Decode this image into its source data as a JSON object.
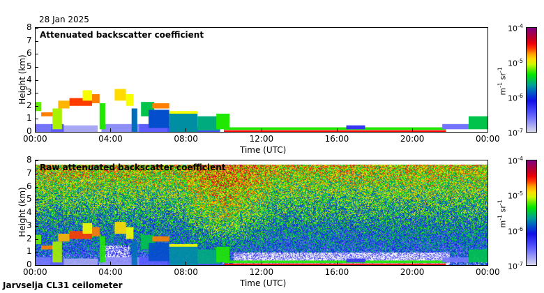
{
  "date": "28 Jan 2025",
  "footer": "Jarvselja CL31 ceilometer",
  "colors": {
    "low": "#d8d8ec",
    "high": "#800080"
  },
  "chart_data": [
    {
      "type": "heatmap",
      "title": "Attenuated backscatter coefficient",
      "xlabel": "Time (UTC)",
      "ylabel": "Height (km)",
      "xlim_hours": [
        0,
        24
      ],
      "ylim": [
        0,
        8
      ],
      "xticks": [
        "00:00",
        "04:00",
        "08:00",
        "12:00",
        "16:00",
        "20:00",
        "00:00"
      ],
      "yticks": [
        "0",
        "1",
        "2",
        "3",
        "4",
        "5",
        "6",
        "7",
        "8"
      ],
      "colorbar": {
        "label_base": "m",
        "label_exp1": "-1",
        "label_mid": " sr",
        "label_exp2": "-1",
        "ticks": [
          {
            "base": "10",
            "exp": "-4"
          },
          {
            "base": "10",
            "exp": "-5"
          },
          {
            "base": "10",
            "exp": "-6"
          },
          {
            "base": "10",
            "exp": "-7"
          }
        ],
        "range_log10": [
          -7,
          -4
        ]
      },
      "layers_hours_km_log10": [
        [
          0.0,
          0.8,
          0.0,
          0.6,
          -6.6
        ],
        [
          0.8,
          1.5,
          0.0,
          0.6,
          -6.5
        ],
        [
          1.5,
          3.3,
          0.0,
          0.5,
          -6.8
        ],
        [
          3.5,
          5.5,
          0.0,
          0.6,
          -6.7
        ],
        [
          5.5,
          7.0,
          0.0,
          0.6,
          -6.5
        ],
        [
          7.0,
          9.8,
          0.0,
          0.4,
          -6.4
        ],
        [
          0.0,
          0.3,
          1.6,
          2.3,
          -5.2
        ],
        [
          0.3,
          1.0,
          1.2,
          1.5,
          -4.7
        ],
        [
          0.9,
          1.4,
          0.2,
          1.8,
          -5.1
        ],
        [
          1.2,
          1.8,
          1.8,
          2.4,
          -4.8
        ],
        [
          1.8,
          3.0,
          2.0,
          2.6,
          -4.6
        ],
        [
          2.5,
          3.0,
          2.4,
          3.2,
          -5.0
        ],
        [
          3.0,
          3.4,
          2.2,
          2.9,
          -4.7
        ],
        [
          3.4,
          3.7,
          0.2,
          2.2,
          -5.3
        ],
        [
          4.2,
          4.8,
          2.4,
          3.3,
          -4.9
        ],
        [
          4.8,
          5.2,
          2.0,
          2.9,
          -5.0
        ],
        [
          5.1,
          5.4,
          0.0,
          1.8,
          -5.8
        ],
        [
          5.6,
          6.3,
          1.2,
          2.3,
          -5.5
        ],
        [
          6.2,
          7.1,
          1.8,
          2.2,
          -4.7
        ],
        [
          6.0,
          7.1,
          0.3,
          1.7,
          -5.9
        ],
        [
          7.1,
          8.6,
          0.0,
          1.5,
          -5.7
        ],
        [
          7.1,
          8.6,
          1.4,
          1.6,
          -5.0
        ],
        [
          8.6,
          9.8,
          0.1,
          1.2,
          -5.6
        ],
        [
          9.6,
          10.3,
          0.2,
          1.4,
          -5.3
        ],
        [
          10.0,
          21.8,
          0.15,
          0.35,
          -5.3
        ],
        [
          10.0,
          21.8,
          0.0,
          0.12,
          -4.5
        ],
        [
          16.5,
          17.5,
          0.2,
          0.5,
          -6.3
        ],
        [
          21.6,
          23.0,
          0.2,
          0.6,
          -6.6
        ],
        [
          23.0,
          24.0,
          0.2,
          1.2,
          -5.5
        ]
      ]
    },
    {
      "type": "heatmap",
      "title": "Raw attenuated backscatter coefficient",
      "xlabel": "Time (UTC)",
      "ylabel": "Height (km)",
      "xlim_hours": [
        0,
        24
      ],
      "ylim": [
        0,
        8
      ],
      "xticks": [
        "00:00",
        "04:00",
        "08:00",
        "12:00",
        "16:00",
        "20:00",
        "00:00"
      ],
      "yticks": [
        "0",
        "1",
        "2",
        "3",
        "4",
        "5",
        "6",
        "7",
        "8"
      ],
      "colorbar": {
        "label_base": "m",
        "label_exp1": "-1",
        "label_mid": " sr",
        "label_exp2": "-1",
        "ticks": [
          {
            "base": "10",
            "exp": "-4"
          },
          {
            "base": "10",
            "exp": "-5"
          },
          {
            "base": "10",
            "exp": "-6"
          },
          {
            "base": "10",
            "exp": "-7"
          }
        ],
        "range_log10": [
          -7,
          -4
        ]
      },
      "max_height_km": 7.7,
      "noise": "signal increases with height; strongest 08:00-12:00"
    }
  ]
}
